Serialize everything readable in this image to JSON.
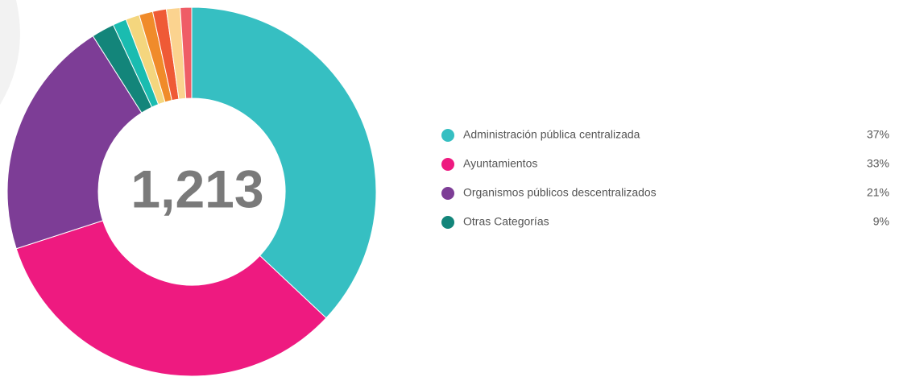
{
  "chart_data": {
    "type": "donut",
    "categories": [
      "Administración pública centralizada",
      "Ayuntamientos",
      "Organismos públicos descentralizados",
      "Otras Categorías"
    ],
    "values": [
      37,
      33,
      21,
      9
    ],
    "value_labels": [
      "37%",
      "33%",
      "21%",
      "9%"
    ],
    "colors": [
      "#36bfc2",
      "#ee1a80",
      "#7d3d96",
      "#13857a"
    ],
    "breakdown": {
      "values": [
        2,
        1.2,
        1.2,
        1.2,
        1.2,
        1.2,
        1
      ],
      "colors": [
        "#13857a",
        "#1abcb0",
        "#f4d67e",
        "#f08b2a",
        "#ef5a36",
        "#fbd38f",
        "#ef5d66"
      ]
    },
    "center_value": {
      "value": 1213,
      "label": "1,213"
    }
  }
}
